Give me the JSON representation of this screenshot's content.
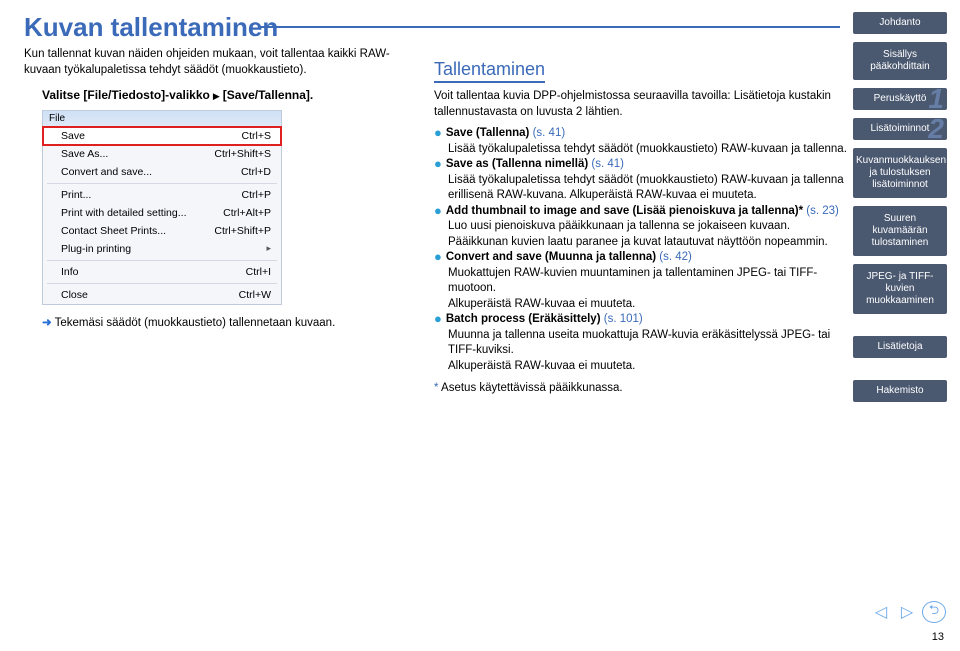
{
  "page_title": "Kuvan tallentaminen",
  "intro": "Kun tallennat kuvan näiden ohjeiden mukaan, voit tallentaa kaikki RAW-kuvaan työkalupaletissa tehdyt säädöt (muokkaustieto).",
  "step_prefix": "Valitse ",
  "step_menu": "[File/Tiedosto]-valikko",
  "step_action": "[Save/Tallenna].",
  "file_menu": {
    "header": "File",
    "items": [
      {
        "label": "Save",
        "shortcut": "Ctrl+S",
        "highlight": true
      },
      {
        "label": "Save As...",
        "shortcut": "Ctrl+Shift+S"
      },
      {
        "label": "Convert and save...",
        "shortcut": "Ctrl+D"
      }
    ],
    "group2": [
      {
        "label": "Print...",
        "shortcut": "Ctrl+P"
      },
      {
        "label": "Print with detailed setting...",
        "shortcut": "Ctrl+Alt+P"
      },
      {
        "label": "Contact Sheet Prints...",
        "shortcut": "Ctrl+Shift+P"
      },
      {
        "label": "Plug-in printing",
        "shortcut": "",
        "sub": true
      }
    ],
    "group3": [
      {
        "label": "Info",
        "shortcut": "Ctrl+I"
      }
    ],
    "group4": [
      {
        "label": "Close",
        "shortcut": "Ctrl+W"
      }
    ]
  },
  "result_text": "Tekemäsi säädöt (muokkaustieto) tallennetaan kuvaan.",
  "section_heading": "Tallentaminen",
  "section_intro": "Voit tallentaa kuvia DPP-ohjelmistossa seuraavilla tavoilla: Lisätietoja kustakin tallennustavasta on luvusta 2 lähtien.",
  "bullets": [
    {
      "title": "Save (Tallenna)",
      "ref": "(s. 41)",
      "lines": [
        "Lisää työkalupaletissa tehdyt säädöt (muokkaustieto) RAW-kuvaan ja tallenna."
      ]
    },
    {
      "title": "Save as (Tallenna nimellä)",
      "ref": "(s. 41)",
      "lines": [
        "Lisää työkalupaletissa tehdyt säädöt (muokkaustieto) RAW-kuvaan ja tallenna erillisenä RAW-kuvana. Alkuperäistä RAW-kuvaa ei muuteta."
      ]
    },
    {
      "title": "Add thumbnail to image and save (Lisää pienoiskuva ja tallenna)*",
      "ref": "(s. 23)",
      "lines": [
        "Luo uusi pienoiskuva pääikkunaan ja tallenna se jokaiseen kuvaan.",
        "Pääikkunan kuvien laatu paranee ja kuvat latautuvat näyttöön nopeammin."
      ]
    },
    {
      "title": "Convert and save (Muunna ja tallenna)",
      "ref": "(s. 42)",
      "lines": [
        "Muokattujen RAW-kuvien muuntaminen ja tallentaminen JPEG- tai TIFF-muotoon.",
        "Alkuperäistä RAW-kuvaa ei muuteta."
      ]
    },
    {
      "title": "Batch process (Eräkäsittely)",
      "ref": "(s. 101)",
      "lines": [
        "Muunna ja tallenna useita muokattuja RAW-kuvia eräkäsittelyssä JPEG- tai TIFF-kuviksi.",
        "Alkuperäistä RAW-kuvaa ei muuteta."
      ]
    }
  ],
  "footnote": "Asetus käytettävissä pääikkunassa.",
  "sidebar": [
    {
      "label": "Johdanto"
    },
    {
      "label": "Sisällys pääkohdittain"
    },
    {
      "label": "Peruskäyttö",
      "num": "1"
    },
    {
      "label": "Lisätoiminnot",
      "num": "2"
    },
    {
      "label": "Kuvanmuokkauksen ja tulostuksen lisätoiminnot"
    },
    {
      "label": "Suuren kuvamäärän tulostaminen"
    },
    {
      "label": "JPEG- ja TIFF-kuvien muokkaaminen"
    },
    {
      "label": "Lisätietoja"
    },
    {
      "label": "Hakemisto"
    }
  ],
  "page_number": "13"
}
